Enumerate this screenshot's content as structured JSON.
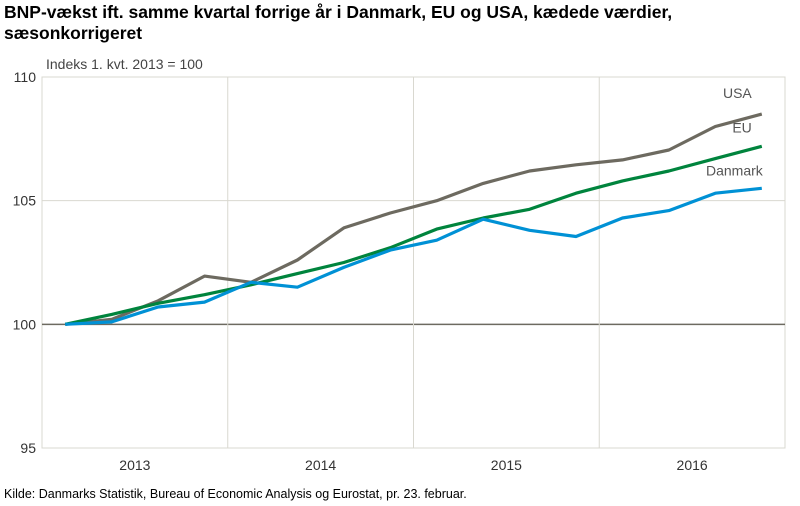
{
  "chart_data": {
    "type": "line",
    "title": "BNP-vækst ift. samme kvartal forrige år i Danmark, EU og USA, kædede værdier, sæsonkorrigeret",
    "subtitle": "Indeks 1. kvt. 2013 = 100",
    "source": "Kilde: Danmarks Statistik, Bureau of Economic Analysis og Eurostat, pr. 23. februar.",
    "xlabel": "",
    "ylabel": "",
    "x_tick_labels": [
      "2013",
      "2014",
      "2015",
      "2016"
    ],
    "x": [
      "2013K1",
      "2013K2",
      "2013K3",
      "2013K4",
      "2014K1",
      "2014K2",
      "2014K3",
      "2014K4",
      "2015K1",
      "2015K2",
      "2015K3",
      "2015K4",
      "2016K1",
      "2016K2",
      "2016K3",
      "2016K4"
    ],
    "ylim": [
      95,
      110
    ],
    "y_ticks": [
      95,
      100,
      105,
      110
    ],
    "grid": true,
    "legend": "inline labels at line ends",
    "series": [
      {
        "name": "USA",
        "color": "#6d6a60",
        "values": [
          100,
          100.2,
          100.95,
          101.95,
          101.7,
          102.6,
          103.9,
          104.5,
          105.0,
          105.7,
          106.2,
          106.45,
          106.65,
          107.05,
          108.0,
          108.5
        ]
      },
      {
        "name": "EU",
        "color": "#00843d",
        "values": [
          100,
          100.4,
          100.85,
          101.2,
          101.6,
          102.05,
          102.5,
          103.1,
          103.85,
          104.3,
          104.65,
          105.3,
          105.8,
          106.2,
          106.7,
          107.2
        ]
      },
      {
        "name": "Danmark",
        "color": "#0091d5",
        "values": [
          100,
          100.1,
          100.7,
          100.9,
          101.7,
          101.5,
          102.3,
          103.0,
          103.4,
          104.25,
          103.8,
          103.55,
          104.3,
          104.6,
          105.3,
          105.5
        ]
      }
    ]
  }
}
